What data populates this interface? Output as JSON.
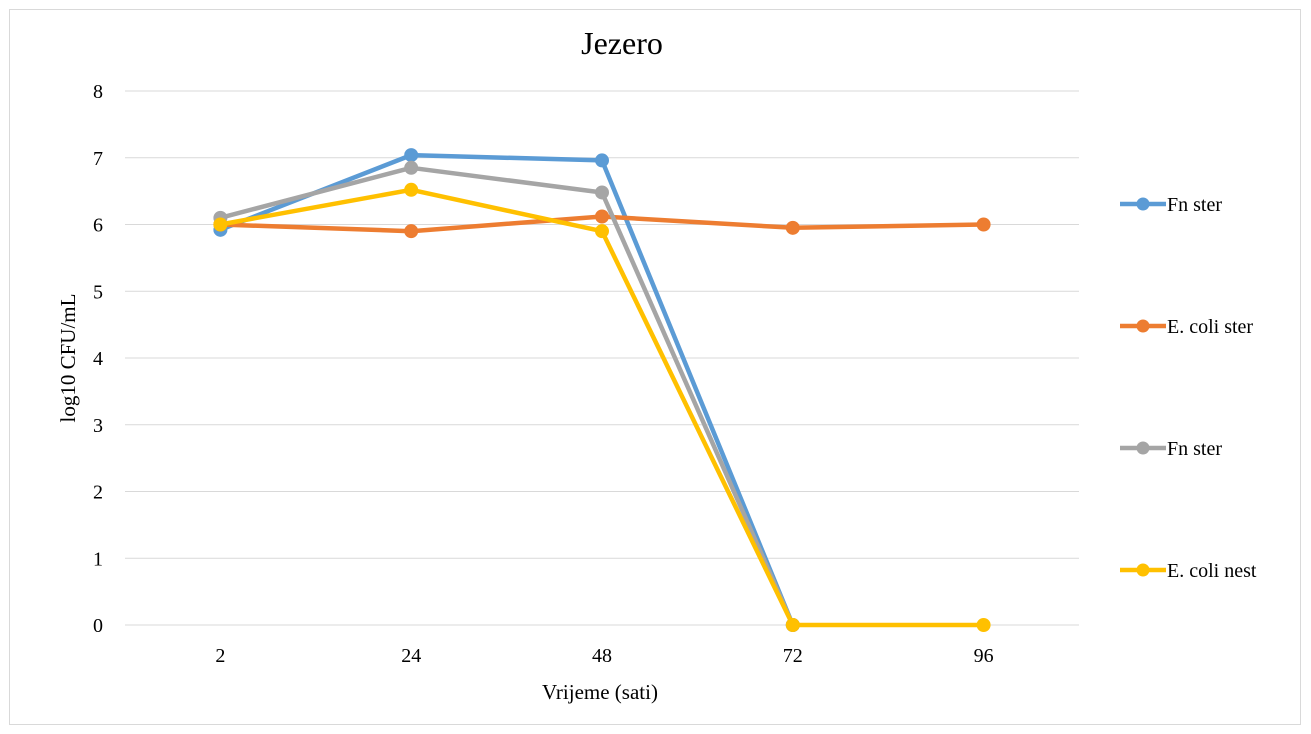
{
  "chart_data": {
    "type": "line",
    "title": "Jezero",
    "xlabel": "Vrijeme (sati)",
    "ylabel": "log10 CFU/mL",
    "categories": [
      "2",
      "24",
      "48",
      "72",
      "96"
    ],
    "ylim": [
      0,
      8
    ],
    "yticks": [
      "0",
      "1",
      "2",
      "3",
      "4",
      "5",
      "6",
      "7",
      "8"
    ],
    "grid": true,
    "legend_position": "right",
    "series": [
      {
        "name": "Fn ster",
        "color": "#5b9bd5",
        "values": [
          5.92,
          7.04,
          6.96,
          0,
          null
        ]
      },
      {
        "name": "E. coli ster",
        "color": "#ed7d31",
        "values": [
          6.0,
          5.9,
          6.12,
          5.95,
          6.0
        ]
      },
      {
        "name": "Fn ster",
        "color": "#a5a5a5",
        "values": [
          6.1,
          6.85,
          6.48,
          0,
          null
        ]
      },
      {
        "name": "E. coli nest",
        "color": "#ffc000",
        "values": [
          6.0,
          6.52,
          5.9,
          0,
          0
        ]
      }
    ]
  }
}
